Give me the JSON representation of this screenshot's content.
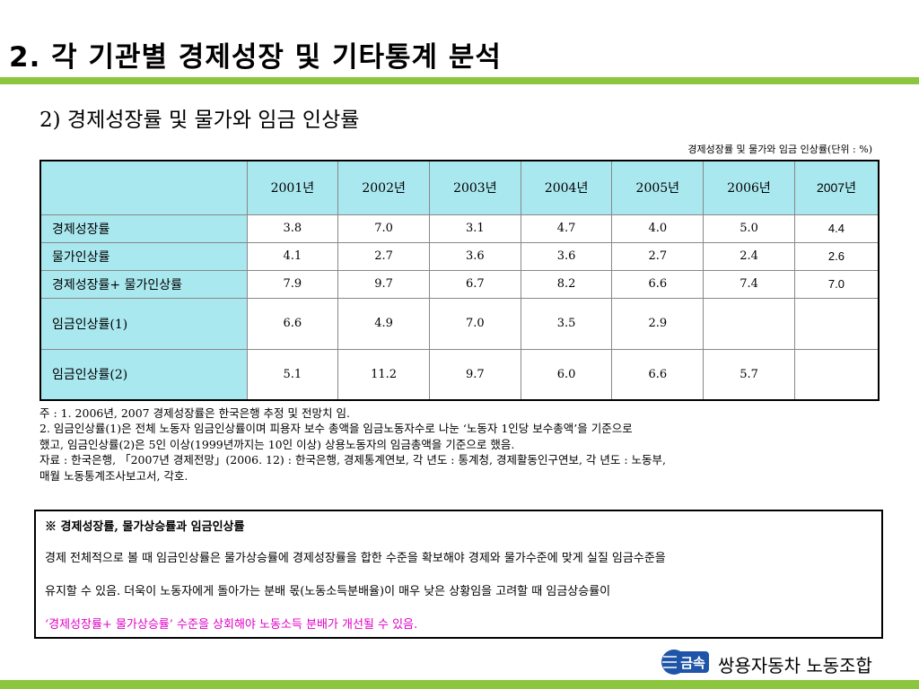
{
  "title": "2. 각 기관별 경제성장 및 기타통계 분석",
  "subtitle": "2) 경제성장률 및 물가와 임금 인상률",
  "unit_note": "경제성장률 및 물가와 임금 인상률(단위 : %)",
  "table": {
    "headers": [
      "",
      "2001년",
      "2002년",
      "2003년",
      "2004년",
      "2005년",
      "2006년",
      "2007년"
    ],
    "rows": [
      {
        "label": "경제성장률",
        "values": [
          "3.8",
          "7.0",
          "3.1",
          "4.7",
          "4.0",
          "5.0",
          "4.4"
        ]
      },
      {
        "label": "물가인상률",
        "values": [
          "4.1",
          "2.7",
          "3.6",
          "3.6",
          "2.7",
          "2.4",
          "2.6"
        ]
      },
      {
        "label": "경제성장률+ 물가인상률",
        "values": [
          "7.9",
          "9.7",
          "6.7",
          "8.2",
          "6.6",
          "7.4",
          "7.0"
        ]
      },
      {
        "label": "임금인상률(1)",
        "values": [
          "6.6",
          "4.9",
          "7.0",
          "3.5",
          "2.9",
          "",
          ""
        ]
      },
      {
        "label": "임금인상률(2)",
        "values": [
          "5.1",
          "11.2",
          "9.7",
          "6.0",
          "6.6",
          "5.7",
          ""
        ]
      }
    ]
  },
  "notes": [
    " 주 :  1.  2006년, 2007 경제성장률은 한국은행 추정 및 전망치 임.",
    "             2. 임금인상률(1)은 전체 노동자 임금인상률이며 피용자 보수 총액을 임금노동자수로 나눈 ‘노동자 1인당 보수총액’을 기준으로",
    "                  했고, 임금인상률(2)은 5인 이상(1999년까지는 10인 이상) 상용노동자의 임금총액을 기준으로 했음.",
    " 자료 : 한국은행, 「2007년 경제전망」(2006. 12) : 한국은행, 경제통계연보, 각 년도 : 통계청, 경제활동인구연보, 각 년도 : 노동부,",
    "           매월 노동통계조사보고서, 각호."
  ],
  "box": {
    "title": "※ 경제성장률, 물가상승률과 임금인상률",
    "line1": "경제 전체적으로 볼 때 임금인상률은 물가상승률에 경제성장률을 합한 수준을 확보해야 경제와 물가수준에 맞게 실질 임금수준을",
    "line2": "유지할 수 있음. 더욱이 노동자에게 돌아가는 분배 몫(노동소득분배율)이 매우 낮은 상황임을 고려할 때 임금상승률이",
    "highlight": "‘경제성장률+ 물가상승률’ 수준을 상회해야 노동소득 분배가 개선될 수 있음.",
    "highlight_color": "#e100c8"
  },
  "footer": {
    "logo_text": "금속",
    "union_name": "쌍용자동차 노동조합"
  },
  "colors": {
    "accent_green": "#8cc63f",
    "header_cyan": "#a9e8ef",
    "logo_blue": "#1f55a8"
  }
}
